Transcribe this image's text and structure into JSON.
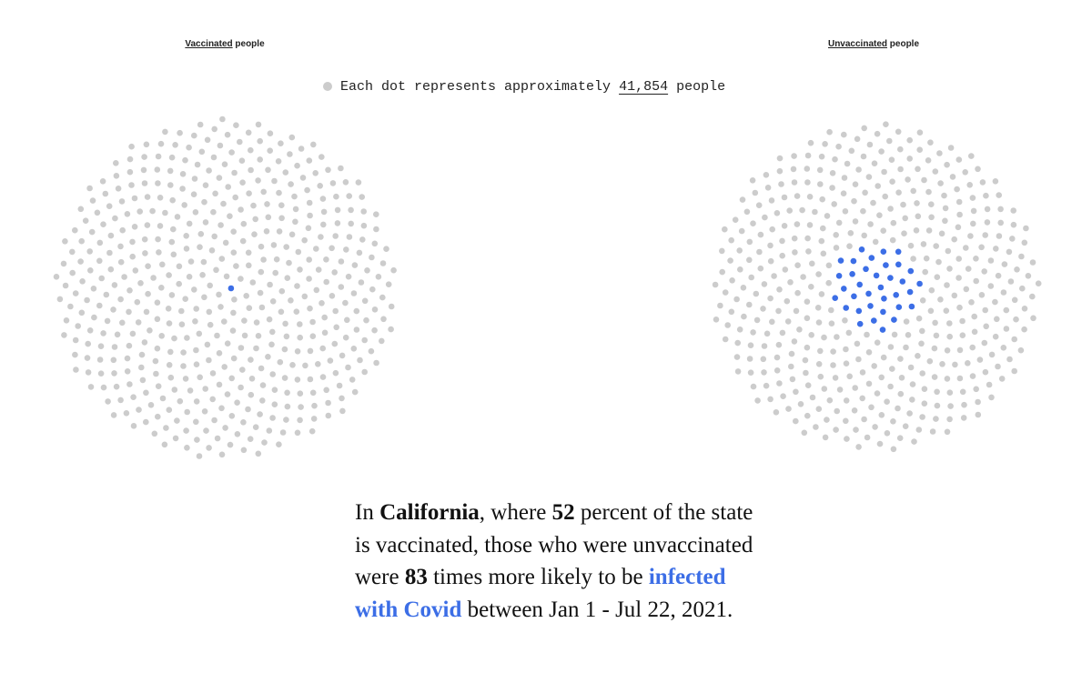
{
  "chart_data": {
    "type": "dot-matrix",
    "legend": {
      "prefix": "Each dot represents approximately",
      "value": "41,854",
      "suffix": "people"
    },
    "colors": {
      "dot_default": "#cccccc",
      "dot_highlight": "#3c6ee6"
    },
    "panels": [
      {
        "id": "vaccinated",
        "title_em": "Vaccinated",
        "title_rest": "people",
        "total_dots": 510,
        "highlighted_dots": 1
      },
      {
        "id": "unvaccinated",
        "title_em": "Unvaccinated",
        "title_rest": "people",
        "total_dots": 470,
        "highlighted_dots": 35
      }
    ]
  },
  "caption": {
    "t1": "In ",
    "state": "California",
    "t2": ", where ",
    "percent": "52",
    "t3": " percent of the state is vaccinated, those who were unvaccinated were ",
    "multiplier": "83",
    "t4": " times more likely to be ",
    "link": "infected with Covid",
    "t5": " between Jan 1 - Jul 22, 2021."
  }
}
